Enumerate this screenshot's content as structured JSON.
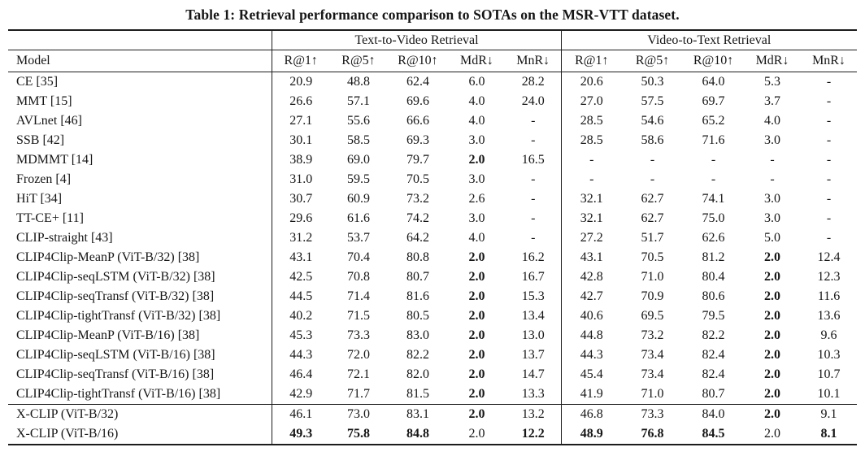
{
  "caption": "Table 1: Retrieval performance comparison to SOTAs on the MSR-VTT dataset.",
  "groups": [
    "Text-to-Video Retrieval",
    "Video-to-Text Retrieval"
  ],
  "model_header": "Model",
  "col_headers": [
    "R@1↑",
    "R@5↑",
    "R@10↑",
    "MdR↓",
    "MnR↓"
  ],
  "text_color": "#161616",
  "rows": [
    {
      "model": "CE [35]",
      "section": "sota",
      "t2v": [
        "20.9",
        "48.8",
        "62.4",
        "6.0",
        "28.2"
      ],
      "t2v_bold": [],
      "v2t": [
        "20.6",
        "50.3",
        "64.0",
        "5.3",
        "-"
      ],
      "v2t_bold": []
    },
    {
      "model": "MMT [15]",
      "section": "sota",
      "t2v": [
        "26.6",
        "57.1",
        "69.6",
        "4.0",
        "24.0"
      ],
      "t2v_bold": [],
      "v2t": [
        "27.0",
        "57.5",
        "69.7",
        "3.7",
        "-"
      ],
      "v2t_bold": []
    },
    {
      "model": "AVLnet [46]",
      "section": "sota",
      "t2v": [
        "27.1",
        "55.6",
        "66.6",
        "4.0",
        "-"
      ],
      "t2v_bold": [],
      "v2t": [
        "28.5",
        "54.6",
        "65.2",
        "4.0",
        "-"
      ],
      "v2t_bold": []
    },
    {
      "model": "SSB [42]",
      "section": "sota",
      "t2v": [
        "30.1",
        "58.5",
        "69.3",
        "3.0",
        "-"
      ],
      "t2v_bold": [],
      "v2t": [
        "28.5",
        "58.6",
        "71.6",
        "3.0",
        "-"
      ],
      "v2t_bold": []
    },
    {
      "model": "MDMMT [14]",
      "section": "sota",
      "t2v": [
        "38.9",
        "69.0",
        "79.7",
        "2.0",
        "16.5"
      ],
      "t2v_bold": [
        3
      ],
      "v2t": [
        "-",
        "-",
        "-",
        "-",
        "-"
      ],
      "v2t_bold": []
    },
    {
      "model": "Frozen [4]",
      "section": "sota",
      "t2v": [
        "31.0",
        "59.5",
        "70.5",
        "3.0",
        "-"
      ],
      "t2v_bold": [],
      "v2t": [
        "-",
        "-",
        "-",
        "-",
        "-"
      ],
      "v2t_bold": []
    },
    {
      "model": "HiT [34]",
      "section": "sota",
      "t2v": [
        "30.7",
        "60.9",
        "73.2",
        "2.6",
        "-"
      ],
      "t2v_bold": [],
      "v2t": [
        "32.1",
        "62.7",
        "74.1",
        "3.0",
        "-"
      ],
      "v2t_bold": []
    },
    {
      "model": "TT-CE+ [11]",
      "section": "sota",
      "t2v": [
        "29.6",
        "61.6",
        "74.2",
        "3.0",
        "-"
      ],
      "t2v_bold": [],
      "v2t": [
        "32.1",
        "62.7",
        "75.0",
        "3.0",
        "-"
      ],
      "v2t_bold": []
    },
    {
      "model": "CLIP-straight [43]",
      "section": "sota",
      "t2v": [
        "31.2",
        "53.7",
        "64.2",
        "4.0",
        "-"
      ],
      "t2v_bold": [],
      "v2t": [
        "27.2",
        "51.7",
        "62.6",
        "5.0",
        "-"
      ],
      "v2t_bold": []
    },
    {
      "model": "CLIP4Clip-MeanP (ViT-B/32) [38]",
      "section": "sota",
      "t2v": [
        "43.1",
        "70.4",
        "80.8",
        "2.0",
        "16.2"
      ],
      "t2v_bold": [
        3
      ],
      "v2t": [
        "43.1",
        "70.5",
        "81.2",
        "2.0",
        "12.4"
      ],
      "v2t_bold": [
        3
      ]
    },
    {
      "model": "CLIP4Clip-seqLSTM (ViT-B/32) [38]",
      "section": "sota",
      "t2v": [
        "42.5",
        "70.8",
        "80.7",
        "2.0",
        "16.7"
      ],
      "t2v_bold": [
        3
      ],
      "v2t": [
        "42.8",
        "71.0",
        "80.4",
        "2.0",
        "12.3"
      ],
      "v2t_bold": [
        3
      ]
    },
    {
      "model": "CLIP4Clip-seqTransf (ViT-B/32) [38]",
      "section": "sota",
      "t2v": [
        "44.5",
        "71.4",
        "81.6",
        "2.0",
        "15.3"
      ],
      "t2v_bold": [
        3
      ],
      "v2t": [
        "42.7",
        "70.9",
        "80.6",
        "2.0",
        "11.6"
      ],
      "v2t_bold": [
        3
      ]
    },
    {
      "model": "CLIP4Clip-tightTransf (ViT-B/32) [38]",
      "section": "sota",
      "t2v": [
        "40.2",
        "71.5",
        "80.5",
        "2.0",
        "13.4"
      ],
      "t2v_bold": [
        3
      ],
      "v2t": [
        "40.6",
        "69.5",
        "79.5",
        "2.0",
        "13.6"
      ],
      "v2t_bold": [
        3
      ]
    },
    {
      "model": "CLIP4Clip-MeanP (ViT-B/16) [38]",
      "section": "sota",
      "t2v": [
        "45.3",
        "73.3",
        "83.0",
        "2.0",
        "13.0"
      ],
      "t2v_bold": [
        3
      ],
      "v2t": [
        "44.8",
        "73.2",
        "82.2",
        "2.0",
        "9.6"
      ],
      "v2t_bold": [
        3
      ]
    },
    {
      "model": "CLIP4Clip-seqLSTM (ViT-B/16) [38]",
      "section": "sota",
      "t2v": [
        "44.3",
        "72.0",
        "82.2",
        "2.0",
        "13.7"
      ],
      "t2v_bold": [
        3
      ],
      "v2t": [
        "44.3",
        "73.4",
        "82.4",
        "2.0",
        "10.3"
      ],
      "v2t_bold": [
        3
      ]
    },
    {
      "model": "CLIP4Clip-seqTransf (ViT-B/16) [38]",
      "section": "sota",
      "t2v": [
        "46.4",
        "72.1",
        "82.0",
        "2.0",
        "14.7"
      ],
      "t2v_bold": [
        3
      ],
      "v2t": [
        "45.4",
        "73.4",
        "82.4",
        "2.0",
        "10.7"
      ],
      "v2t_bold": [
        3
      ]
    },
    {
      "model": "CLIP4Clip-tightTransf (ViT-B/16) [38]",
      "section": "sota",
      "t2v": [
        "42.9",
        "71.7",
        "81.5",
        "2.0",
        "13.3"
      ],
      "t2v_bold": [
        3
      ],
      "v2t": [
        "41.9",
        "71.0",
        "80.7",
        "2.0",
        "10.1"
      ],
      "v2t_bold": [
        3
      ]
    },
    {
      "model": "X-CLIP (ViT-B/32)",
      "section": "ours",
      "t2v": [
        "46.1",
        "73.0",
        "83.1",
        "2.0",
        "13.2"
      ],
      "t2v_bold": [
        3
      ],
      "v2t": [
        "46.8",
        "73.3",
        "84.0",
        "2.0",
        "9.1"
      ],
      "v2t_bold": [
        3
      ]
    },
    {
      "model": "X-CLIP (ViT-B/16)",
      "section": "ours",
      "t2v": [
        "49.3",
        "75.8",
        "84.8",
        "2.0",
        "12.2"
      ],
      "t2v_bold": [
        0,
        1,
        2,
        4
      ],
      "v2t": [
        "48.9",
        "76.8",
        "84.5",
        "2.0",
        "8.1"
      ],
      "v2t_bold": [
        0,
        1,
        2,
        4
      ]
    }
  ]
}
